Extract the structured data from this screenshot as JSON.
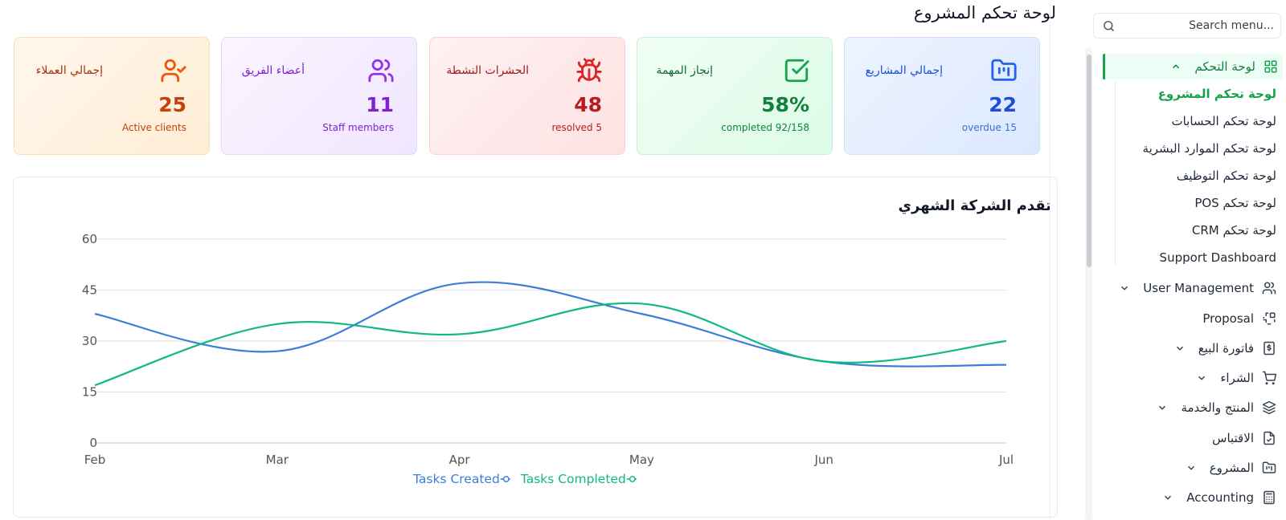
{
  "header": {
    "title": "لوحة تحكم المشروع"
  },
  "search": {
    "placeholder": "Search menu..."
  },
  "cards": [
    {
      "label": "إجمالي المشاريع",
      "value": "22",
      "subtitle": "overdue 15",
      "icon": "folder-kanban-icon",
      "color": "#2563eb"
    },
    {
      "label": "إنجاز المهمة",
      "value": "58%",
      "subtitle": "completed 92/158",
      "icon": "check-square-icon",
      "color": "#16a34a"
    },
    {
      "label": "الحشرات النشطة",
      "value": "48",
      "subtitle": "resolved 5",
      "icon": "bug-icon",
      "color": "#dc2626"
    },
    {
      "label": "أعضاء الفريق",
      "value": "11",
      "subtitle": "Staff members",
      "icon": "users-icon",
      "color": "#9333ea"
    },
    {
      "label": "إجمالي العملاء",
      "value": "25",
      "subtitle": "Active clients",
      "icon": "user-check-icon",
      "color": "#ea580c"
    }
  ],
  "sidebar": {
    "dashboard_label": "لوحة التحكم",
    "sub_items": [
      "لوحة تحكم المشروع",
      "لوحة تحكم الحسابات",
      "لوحة تحكم الموارد البشرية",
      "لوحة تحكم التوظيف",
      "لوحة تحكم POS",
      "لوحة تحكم CRM",
      "Support Dashboard"
    ],
    "items": [
      {
        "label": "User Management",
        "icon": "users-icon",
        "chevron": true
      },
      {
        "label": "Proposal",
        "icon": "proposal-icon",
        "chevron": false
      },
      {
        "label": "فاتورة البيع",
        "icon": "invoice-icon",
        "chevron": true
      },
      {
        "label": "الشراء",
        "icon": "cart-icon",
        "chevron": true
      },
      {
        "label": "المنتج والخدمة",
        "icon": "layers-icon",
        "chevron": true
      },
      {
        "label": "الاقتباس",
        "icon": "file-check-icon",
        "chevron": false
      },
      {
        "label": "المشروع",
        "icon": "folder-kanban-icon",
        "chevron": true
      },
      {
        "label": "Accounting",
        "icon": "calculator-icon",
        "chevron": true
      }
    ]
  },
  "chart": {
    "title": "تقدم الشركة الشهري"
  },
  "chart_data": {
    "type": "line",
    "title": "تقدم الشركة الشهري",
    "x": [
      "Feb",
      "Mar",
      "Apr",
      "May",
      "Jun",
      "Jul"
    ],
    "ylim": [
      0,
      60
    ],
    "yticks": [
      0,
      15,
      30,
      45,
      60
    ],
    "grid": true,
    "legend": "bottom",
    "series": [
      {
        "name": "Tasks Created",
        "values": [
          38,
          27,
          47,
          38,
          24,
          23
        ],
        "color": "#3b7dd8"
      },
      {
        "name": "Tasks Completed",
        "values": [
          17,
          35,
          32,
          41,
          24,
          30
        ],
        "color": "#10b981"
      }
    ]
  }
}
